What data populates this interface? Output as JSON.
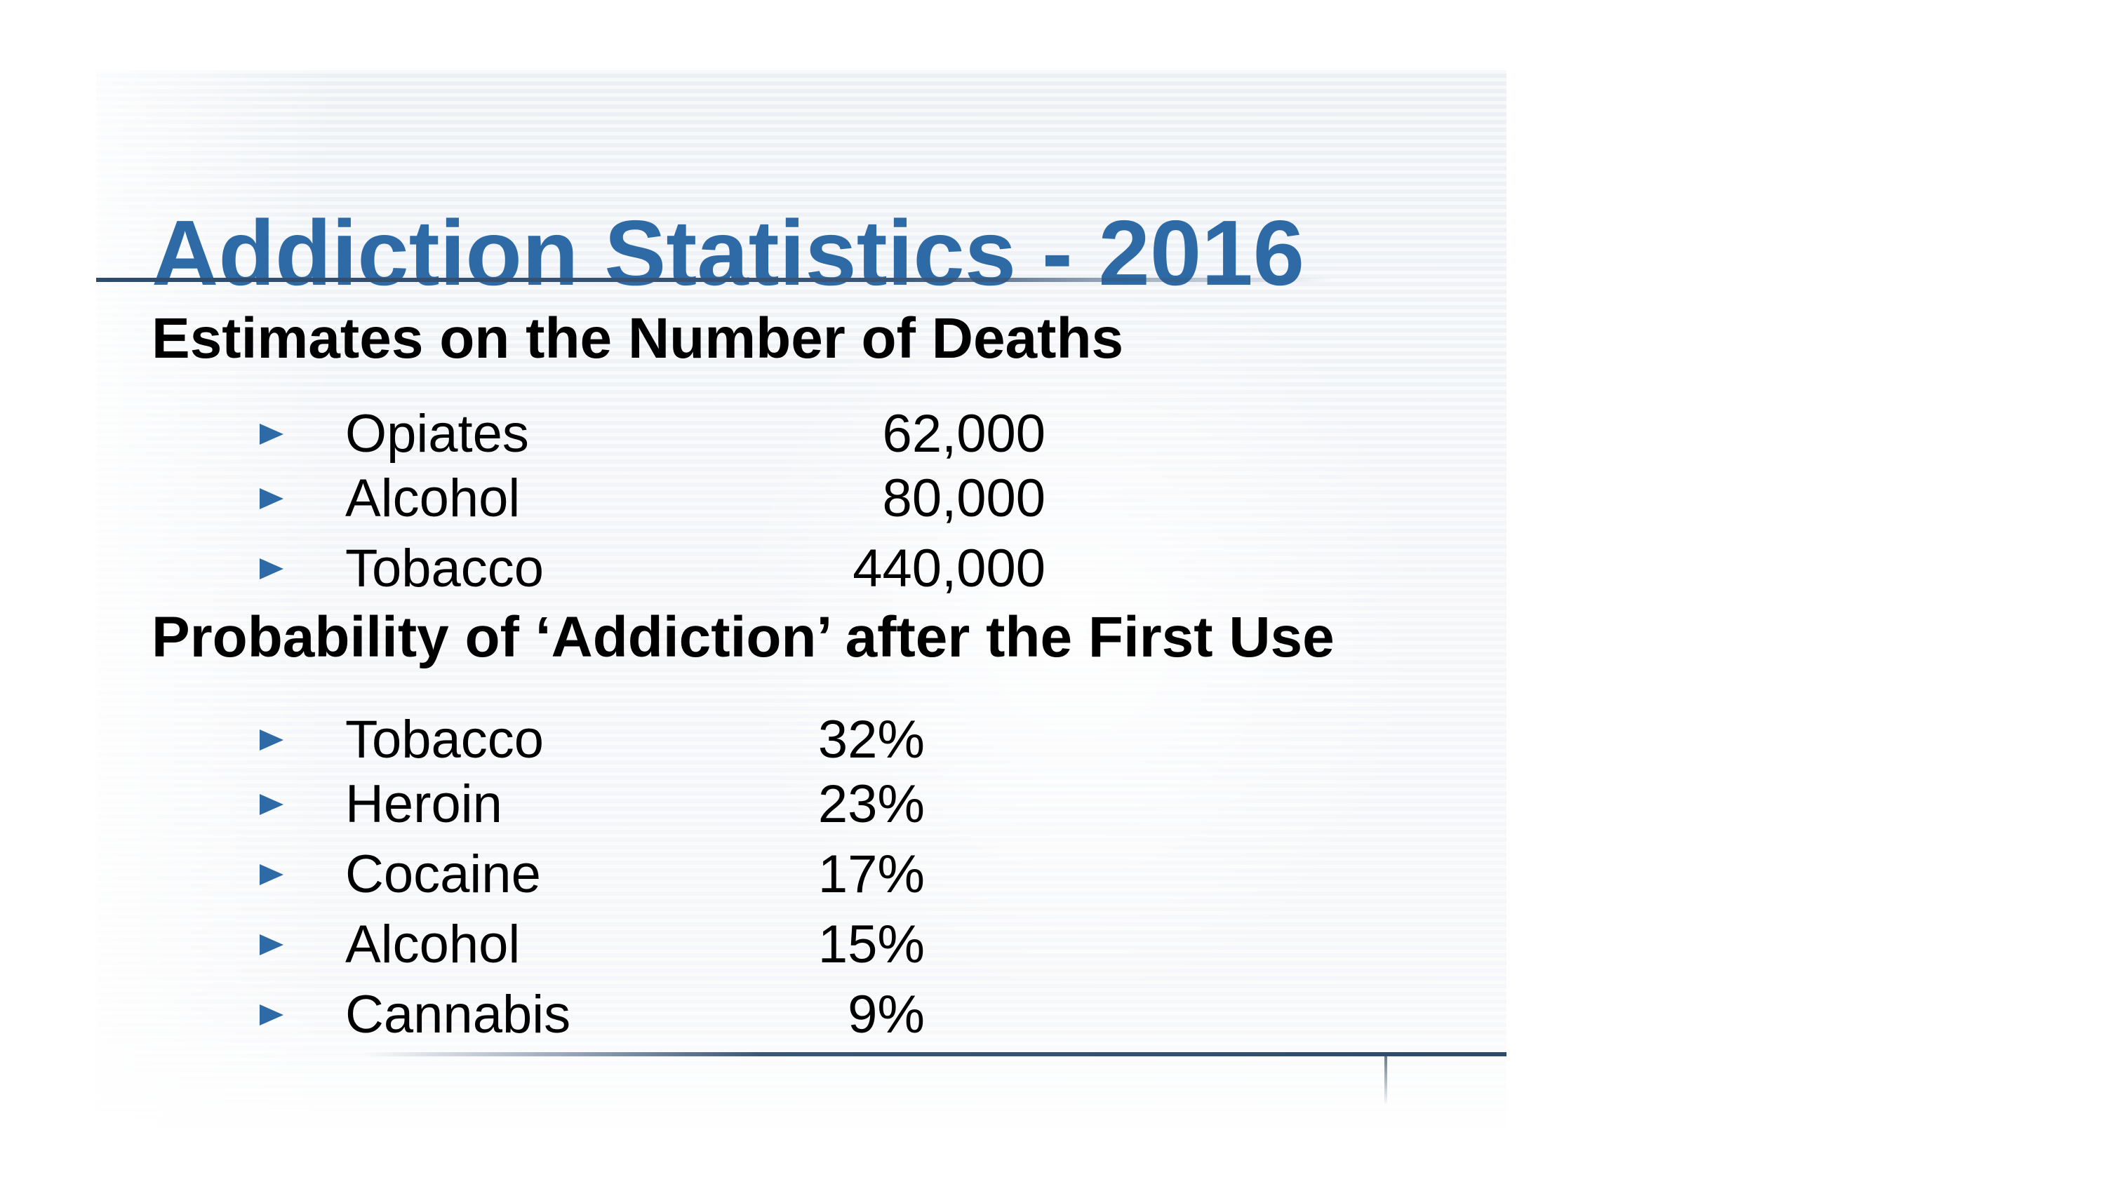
{
  "slide": {
    "title": "Addiction Statistics - 2016",
    "sections": {
      "deaths": {
        "heading": "Estimates on the Number of Deaths",
        "items": [
          {
            "label": "Opiates",
            "value": "62,000"
          },
          {
            "label": "Alcohol",
            "value": "80,000"
          },
          {
            "label": "Tobacco",
            "value": "440,000"
          }
        ]
      },
      "probability": {
        "heading": "Probability of ‘Addiction’ after the First Use",
        "items": [
          {
            "label": "Tobacco",
            "value": "32%"
          },
          {
            "label": "Heroin",
            "value": "23%"
          },
          {
            "label": "Cocaine",
            "value": "17%"
          },
          {
            "label": "Alcohol",
            "value": "15%"
          },
          {
            "label": "Cannabis",
            "value": "9%"
          }
        ]
      }
    }
  },
  "colors": {
    "title": "#2e6aa6",
    "bullet": "#2e6aa6",
    "rule": "#3b5676",
    "text": "#000000",
    "background": "#ffffff"
  },
  "icons": {
    "bullet": "right-pointing-triangle"
  }
}
